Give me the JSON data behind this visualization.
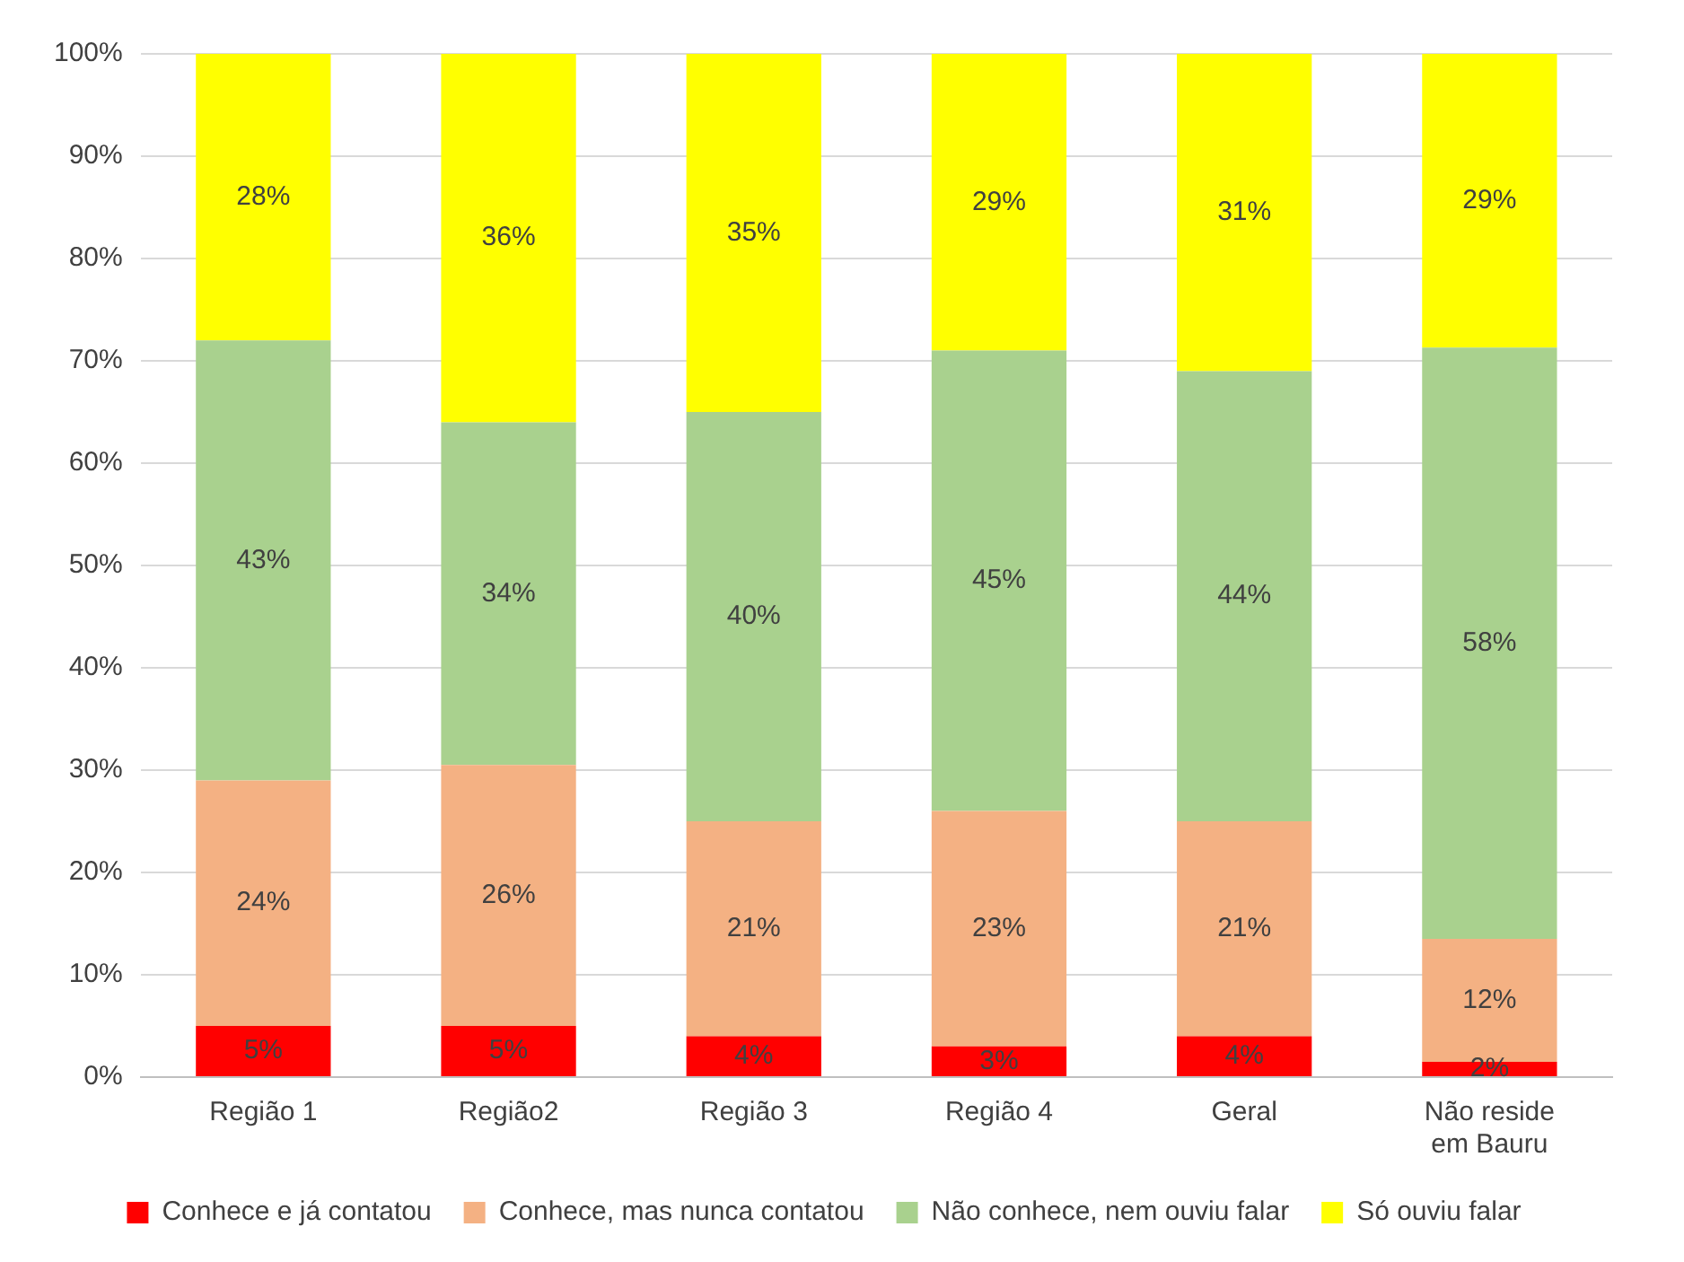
{
  "chart_data": {
    "type": "bar",
    "stacked": true,
    "categories": [
      "Região 1",
      "Região2",
      "Região 3",
      "Região 4",
      "Geral",
      "Não reside em Bauru"
    ],
    "series": [
      {
        "name": "Conhece e já contatou",
        "color": "#ff0000",
        "values": [
          5,
          5,
          4,
          3,
          4,
          1.5
        ],
        "value_labels": [
          "5%",
          "5%",
          "4%",
          "3%",
          "4%",
          "2%"
        ]
      },
      {
        "name": "Conhece, mas nunca contatou",
        "color": "#f4b183",
        "values": [
          24,
          25.5,
          21,
          23,
          21,
          12
        ],
        "value_labels": [
          "24%",
          "26%",
          "21%",
          "23%",
          "21%",
          "12%"
        ]
      },
      {
        "name": "Não conhece, nem ouviu falar",
        "color": "#a9d18e",
        "values": [
          43,
          33.5,
          40,
          45,
          44,
          57.8
        ],
        "value_labels": [
          "43%",
          "34%",
          "40%",
          "45%",
          "44%",
          "58%"
        ]
      },
      {
        "name": "Só ouviu falar",
        "color": "#ffff00",
        "values": [
          28,
          36,
          35,
          29,
          31,
          28.7
        ],
        "value_labels": [
          "28%",
          "36%",
          "35%",
          "29%",
          "31%",
          "29%"
        ]
      }
    ],
    "ylim": [
      0,
      100
    ],
    "yticks": [
      {
        "value": 0,
        "label": "0%"
      },
      {
        "value": 10,
        "label": "10%"
      },
      {
        "value": 20,
        "label": "20%"
      },
      {
        "value": 30,
        "label": "30%"
      },
      {
        "value": 40,
        "label": "40%"
      },
      {
        "value": 50,
        "label": "50%"
      },
      {
        "value": 60,
        "label": "60%"
      },
      {
        "value": 70,
        "label": "70%"
      },
      {
        "value": 80,
        "label": "80%"
      },
      {
        "value": 90,
        "label": "90%"
      },
      {
        "value": 100,
        "label": "100%"
      }
    ],
    "grid": "y",
    "legend": "bottom"
  }
}
